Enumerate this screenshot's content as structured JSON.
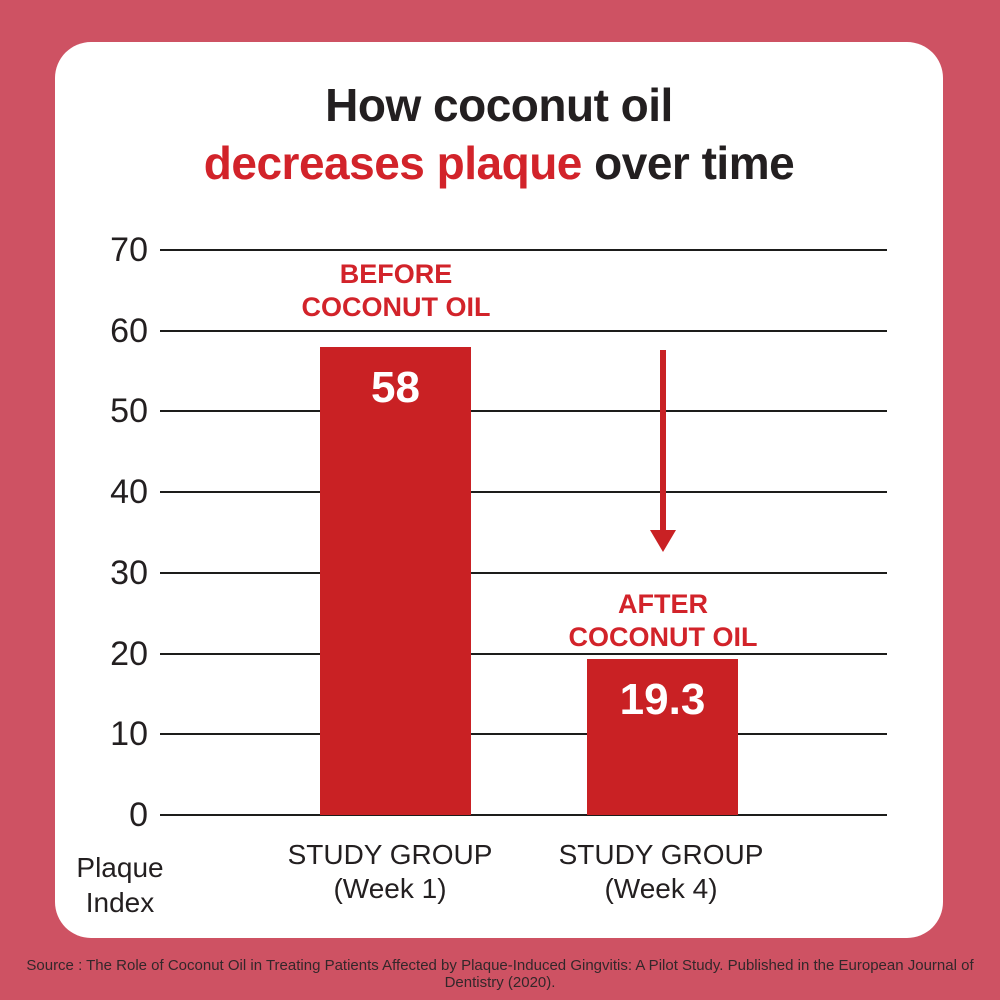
{
  "colors": {
    "background_pink": "#ce5263",
    "card_white": "#ffffff",
    "accent_red_text": "#d2232a",
    "bar_red": "#c92124",
    "text_black": "#231f20",
    "source_text": "#33272a"
  },
  "title": {
    "line1": "How coconut oil",
    "line2_red": "decreases plaque",
    "line2_black": " over time"
  },
  "chart_data": {
    "type": "bar",
    "title": "How coconut oil decreases plaque over time",
    "categories": [
      "STUDY GROUP (Week 1)",
      "STUDY GROUP (Week 4)"
    ],
    "values": [
      58,
      19.3
    ],
    "bar_labels": [
      "58",
      "19.3"
    ],
    "bar_annotations": [
      "BEFORE COCONUT OIL",
      "AFTER COCONUT OIL"
    ],
    "ylabel": "Plaque Index",
    "yticks": [
      0,
      10,
      20,
      30,
      40,
      50,
      60,
      70
    ],
    "ylim": [
      0,
      70
    ],
    "grid": true,
    "legend": "none",
    "bar_color": "#c92124",
    "annotation_arrow": "red downward arrow between gridline 60 and gridline 30 above Week 4 bar"
  },
  "annotations": {
    "before_line1": "BEFORE",
    "before_line2": "COCONUT OIL",
    "after_line1": "AFTER",
    "after_line2": "COCONUT OIL"
  },
  "x_axis": {
    "cat1_line1": "STUDY GROUP",
    "cat1_line2": "(Week 1)",
    "cat2_line1": "STUDY GROUP",
    "cat2_line2": "(Week 4)"
  },
  "y_axis": {
    "label_line1": "Plaque",
    "label_line2": "Index"
  },
  "source": "Source : The Role of Coconut Oil in Treating Patients Affected by Plaque-Induced Gingvitis: A Pilot Study. Published in the European Journal of Dentistry (2020)."
}
